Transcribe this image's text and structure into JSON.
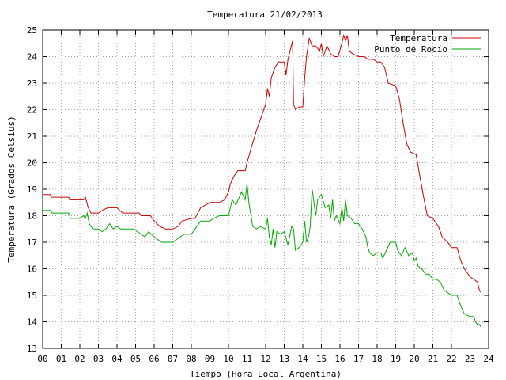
{
  "chart_data": {
    "type": "line",
    "title": "Temperatura 21/02/2013",
    "xlabel": "Tiempo (Hora Local Argentina)",
    "ylabel": "Temperatura (Grados Celsius)",
    "xlim": [
      0,
      24
    ],
    "ylim": [
      13,
      25
    ],
    "x_ticks": [
      "00",
      "01",
      "02",
      "03",
      "04",
      "05",
      "06",
      "07",
      "08",
      "09",
      "10",
      "11",
      "12",
      "13",
      "14",
      "15",
      "16",
      "17",
      "18",
      "19",
      "20",
      "21",
      "22",
      "23",
      "24"
    ],
    "y_ticks": [
      "13",
      "14",
      "15",
      "16",
      "17",
      "18",
      "19",
      "20",
      "21",
      "22",
      "23",
      "24",
      "25"
    ],
    "grid": true,
    "legend_position": "top-right",
    "series": [
      {
        "name": "Temperatura",
        "color": "#cc0000",
        "points": [
          [
            0.0,
            18.8
          ],
          [
            0.4,
            18.8
          ],
          [
            0.45,
            18.7
          ],
          [
            1.4,
            18.7
          ],
          [
            1.45,
            18.6
          ],
          [
            2.2,
            18.6
          ],
          [
            2.3,
            18.7
          ],
          [
            2.45,
            18.3
          ],
          [
            2.6,
            18.1
          ],
          [
            3.0,
            18.1
          ],
          [
            3.2,
            18.2
          ],
          [
            3.5,
            18.3
          ],
          [
            4.0,
            18.3
          ],
          [
            4.15,
            18.2
          ],
          [
            4.3,
            18.1
          ],
          [
            5.2,
            18.1
          ],
          [
            5.3,
            18.0
          ],
          [
            5.8,
            18.0
          ],
          [
            6.0,
            17.8
          ],
          [
            6.3,
            17.6
          ],
          [
            6.6,
            17.5
          ],
          [
            7.0,
            17.5
          ],
          [
            7.3,
            17.6
          ],
          [
            7.5,
            17.8
          ],
          [
            8.0,
            17.9
          ],
          [
            8.2,
            17.9
          ],
          [
            8.5,
            18.3
          ],
          [
            9.0,
            18.5
          ],
          [
            9.5,
            18.5
          ],
          [
            9.8,
            18.6
          ],
          [
            10.0,
            18.9
          ],
          [
            10.1,
            19.2
          ],
          [
            10.3,
            19.5
          ],
          [
            10.5,
            19.7
          ],
          [
            10.9,
            19.7
          ],
          [
            11.0,
            20.0
          ],
          [
            11.2,
            20.5
          ],
          [
            11.5,
            21.2
          ],
          [
            11.8,
            21.8
          ],
          [
            12.0,
            22.2
          ],
          [
            12.1,
            22.8
          ],
          [
            12.2,
            22.5
          ],
          [
            12.3,
            23.2
          ],
          [
            12.5,
            23.6
          ],
          [
            12.7,
            23.8
          ],
          [
            13.0,
            23.8
          ],
          [
            13.1,
            23.3
          ],
          [
            13.2,
            23.9
          ],
          [
            13.35,
            24.3
          ],
          [
            13.45,
            24.6
          ],
          [
            13.5,
            22.2
          ],
          [
            13.6,
            22.0
          ],
          [
            13.8,
            22.1
          ],
          [
            14.0,
            22.1
          ],
          [
            14.1,
            23.2
          ],
          [
            14.2,
            24.0
          ],
          [
            14.35,
            24.7
          ],
          [
            14.5,
            24.4
          ],
          [
            14.7,
            24.4
          ],
          [
            14.9,
            24.2
          ],
          [
            15.0,
            24.5
          ],
          [
            15.1,
            24.0
          ],
          [
            15.3,
            24.4
          ],
          [
            15.5,
            24.1
          ],
          [
            15.7,
            24.0
          ],
          [
            15.9,
            24.0
          ],
          [
            16.1,
            24.5
          ],
          [
            16.2,
            24.8
          ],
          [
            16.3,
            24.6
          ],
          [
            16.4,
            24.8
          ],
          [
            16.5,
            24.2
          ],
          [
            16.7,
            24.1
          ],
          [
            17.0,
            24.0
          ],
          [
            17.3,
            24.0
          ],
          [
            17.5,
            23.9
          ],
          [
            17.8,
            23.9
          ],
          [
            18.0,
            23.8
          ],
          [
            18.2,
            23.8
          ],
          [
            18.4,
            23.6
          ],
          [
            18.6,
            23.0
          ],
          [
            19.0,
            22.9
          ],
          [
            19.2,
            22.4
          ],
          [
            19.4,
            21.5
          ],
          [
            19.6,
            20.7
          ],
          [
            19.8,
            20.4
          ],
          [
            20.1,
            20.3
          ],
          [
            20.3,
            19.5
          ],
          [
            20.5,
            18.7
          ],
          [
            20.7,
            18.0
          ],
          [
            21.0,
            17.9
          ],
          [
            21.3,
            17.6
          ],
          [
            21.5,
            17.2
          ],
          [
            21.8,
            17.0
          ],
          [
            22.0,
            16.8
          ],
          [
            22.3,
            16.8
          ],
          [
            22.5,
            16.3
          ],
          [
            22.7,
            16.0
          ],
          [
            23.0,
            15.7
          ],
          [
            23.2,
            15.6
          ],
          [
            23.4,
            15.5
          ],
          [
            23.5,
            15.2
          ],
          [
            23.6,
            15.1
          ]
        ]
      },
      {
        "name": "Punto de Rocío",
        "color": "#00aa00",
        "points": [
          [
            0.0,
            18.2
          ],
          [
            0.4,
            18.2
          ],
          [
            0.5,
            18.1
          ],
          [
            1.4,
            18.1
          ],
          [
            1.5,
            17.9
          ],
          [
            2.0,
            17.9
          ],
          [
            2.2,
            18.0
          ],
          [
            2.3,
            17.9
          ],
          [
            2.4,
            18.1
          ],
          [
            2.5,
            17.7
          ],
          [
            2.7,
            17.5
          ],
          [
            3.0,
            17.5
          ],
          [
            3.2,
            17.4
          ],
          [
            3.4,
            17.5
          ],
          [
            3.6,
            17.7
          ],
          [
            3.8,
            17.5
          ],
          [
            4.0,
            17.6
          ],
          [
            4.2,
            17.5
          ],
          [
            4.9,
            17.5
          ],
          [
            5.1,
            17.4
          ],
          [
            5.3,
            17.3
          ],
          [
            5.5,
            17.2
          ],
          [
            5.7,
            17.4
          ],
          [
            6.0,
            17.2
          ],
          [
            6.2,
            17.1
          ],
          [
            6.4,
            17.0
          ],
          [
            7.0,
            17.0
          ],
          [
            7.2,
            17.1
          ],
          [
            7.6,
            17.3
          ],
          [
            8.0,
            17.3
          ],
          [
            8.2,
            17.5
          ],
          [
            8.5,
            17.8
          ],
          [
            9.0,
            17.8
          ],
          [
            9.2,
            17.9
          ],
          [
            9.5,
            18.0
          ],
          [
            10.0,
            18.0
          ],
          [
            10.2,
            18.6
          ],
          [
            10.4,
            18.4
          ],
          [
            10.7,
            18.9
          ],
          [
            10.9,
            18.6
          ],
          [
            11.0,
            19.2
          ],
          [
            11.1,
            18.5
          ],
          [
            11.3,
            17.6
          ],
          [
            11.5,
            17.5
          ],
          [
            11.7,
            17.6
          ],
          [
            12.0,
            17.5
          ],
          [
            12.1,
            17.9
          ],
          [
            12.2,
            17.2
          ],
          [
            12.3,
            16.9
          ],
          [
            12.4,
            17.5
          ],
          [
            12.5,
            16.8
          ],
          [
            12.6,
            17.4
          ],
          [
            12.8,
            17.3
          ],
          [
            13.0,
            17.4
          ],
          [
            13.2,
            16.9
          ],
          [
            13.4,
            17.6
          ],
          [
            13.5,
            17.5
          ],
          [
            13.6,
            16.7
          ],
          [
            13.8,
            16.8
          ],
          [
            14.0,
            17.0
          ],
          [
            14.1,
            17.8
          ],
          [
            14.2,
            17.0
          ],
          [
            14.3,
            17.2
          ],
          [
            14.4,
            17.6
          ],
          [
            14.5,
            19.0
          ],
          [
            14.6,
            18.5
          ],
          [
            14.7,
            18.0
          ],
          [
            14.8,
            18.6
          ],
          [
            15.0,
            18.8
          ],
          [
            15.2,
            18.3
          ],
          [
            15.4,
            18.4
          ],
          [
            15.5,
            17.9
          ],
          [
            15.6,
            18.6
          ],
          [
            15.7,
            17.8
          ],
          [
            15.8,
            18.0
          ],
          [
            16.0,
            17.7
          ],
          [
            16.1,
            18.3
          ],
          [
            16.2,
            17.8
          ],
          [
            16.3,
            18.6
          ],
          [
            16.4,
            18.0
          ],
          [
            16.6,
            17.9
          ],
          [
            16.8,
            17.7
          ],
          [
            17.0,
            17.7
          ],
          [
            17.2,
            17.5
          ],
          [
            17.4,
            17.2
          ],
          [
            17.5,
            16.8
          ],
          [
            17.6,
            16.6
          ],
          [
            17.8,
            16.5
          ],
          [
            18.0,
            16.6
          ],
          [
            18.2,
            16.6
          ],
          [
            18.3,
            16.4
          ],
          [
            18.5,
            16.7
          ],
          [
            18.7,
            17.0
          ],
          [
            19.0,
            17.0
          ],
          [
            19.1,
            16.7
          ],
          [
            19.3,
            16.5
          ],
          [
            19.5,
            16.8
          ],
          [
            19.7,
            16.5
          ],
          [
            19.9,
            16.6
          ],
          [
            20.0,
            16.3
          ],
          [
            20.1,
            16.4
          ],
          [
            20.2,
            16.1
          ],
          [
            20.4,
            16.0
          ],
          [
            20.6,
            15.8
          ],
          [
            20.8,
            15.8
          ],
          [
            21.0,
            15.6
          ],
          [
            21.2,
            15.6
          ],
          [
            21.4,
            15.5
          ],
          [
            21.6,
            15.2
          ],
          [
            21.8,
            15.1
          ],
          [
            22.0,
            15.0
          ],
          [
            22.3,
            15.0
          ],
          [
            22.5,
            14.6
          ],
          [
            22.7,
            14.3
          ],
          [
            23.0,
            14.2
          ],
          [
            23.2,
            14.2
          ],
          [
            23.3,
            14.0
          ],
          [
            23.4,
            13.9
          ],
          [
            23.5,
            13.9
          ],
          [
            23.6,
            13.8
          ]
        ]
      }
    ]
  }
}
